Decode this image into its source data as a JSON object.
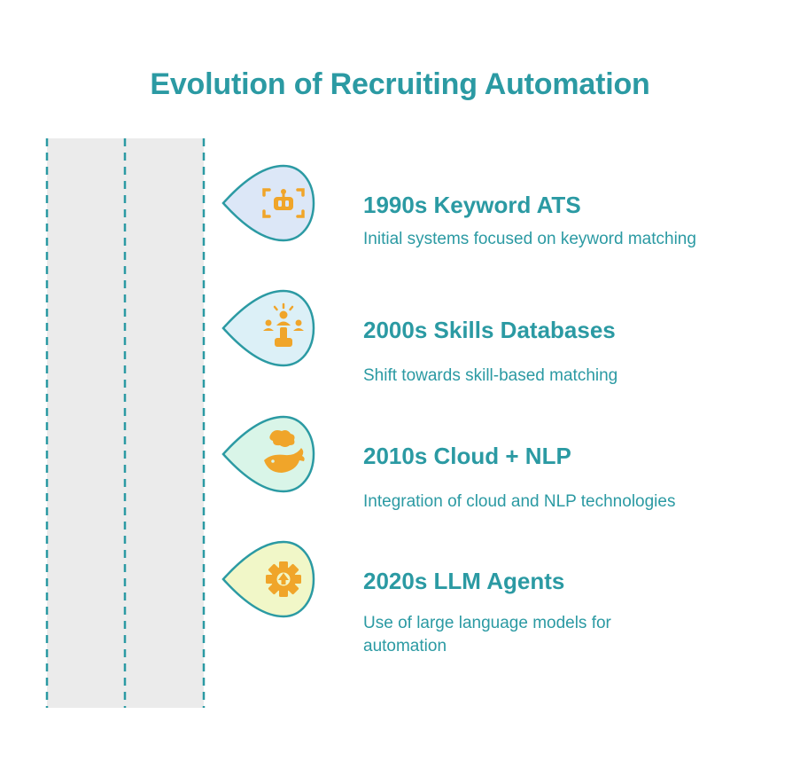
{
  "title": "Evolution of Recruiting Automation",
  "colors": {
    "accent_text": "#2b9aa3",
    "road_fill": "#ebebeb",
    "icon_orange": "#f0a52a",
    "drop_outline": "#2b9aa3"
  },
  "steps": [
    {
      "title": "1990s Keyword ATS",
      "description": "Initial systems focused on keyword matching",
      "icon": "robot-icon",
      "fill": "#dce7f7"
    },
    {
      "title": "2000s Skills Databases",
      "description": "Shift towards skill-based matching",
      "icon": "team-selection-icon",
      "fill": "#dcf0f7"
    },
    {
      "title": "2010s Cloud + NLP",
      "description": "Integration of cloud and NLP technologies",
      "icon": "whale-icon",
      "fill": "#d9f5e8"
    },
    {
      "title": "2020s LLM Agents",
      "description": "Use of large language models for automation",
      "icon": "gear-arrow-icon",
      "fill": "#f1f7c8"
    }
  ]
}
